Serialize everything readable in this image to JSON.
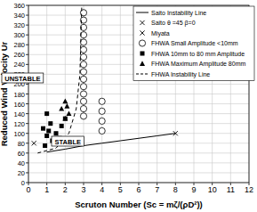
{
  "chart_data": {
    "type": "scatter",
    "x_label": "Scruton  Number (Sc = mζ/(ρD²))",
    "y_label": "Reduced Wind Velocity  Ur",
    "xlim": [
      0,
      12
    ],
    "xticks": [
      0,
      1,
      2,
      3,
      4,
      5,
      6,
      7,
      8,
      9,
      10,
      11,
      12
    ],
    "ylim": [
      0,
      360
    ],
    "yticks": [
      0,
      20,
      40,
      60,
      80,
      100,
      120,
      140,
      160,
      180,
      200,
      220,
      240,
      260,
      280,
      300,
      320,
      340,
      360
    ],
    "grid": true,
    "legend": "upper right",
    "annotations": [
      "UNSTABLE",
      "STABLE"
    ],
    "series": [
      {
        "name": "Saito Instability Line",
        "type": "line",
        "line_style": "solid",
        "color": "#000000",
        "x": [
          1,
          2,
          3,
          4,
          5,
          6,
          7,
          8
        ],
        "values": [
          62,
          68,
          75,
          80,
          85,
          90,
          95,
          100
        ]
      },
      {
        "name": "Saito  θ =45  β=0",
        "type": "scatter",
        "marker": "x",
        "color": "#000000",
        "x": [
          8
        ],
        "values": [
          100
        ]
      },
      {
        "name": "Miyata",
        "type": "scatter",
        "marker": "x",
        "color": "#000000",
        "x": [
          0.3
        ],
        "values": [
          80
        ]
      },
      {
        "name": "FHWA Small Amplitude <10mm",
        "type": "scatter",
        "marker": "circle",
        "color": "#000000",
        "x": [
          3,
          3,
          3,
          3,
          3,
          3,
          3,
          3,
          3,
          3,
          3,
          3,
          3,
          3,
          3,
          4,
          4,
          4,
          4
        ],
        "values": [
          135,
          150,
          165,
          180,
          195,
          210,
          225,
          240,
          255,
          270,
          285,
          300,
          315,
          330,
          345,
          105,
          125,
          145,
          165
        ]
      },
      {
        "name": "FHWA 10mm to 80 mm Amplitude",
        "type": "scatter",
        "marker": "square",
        "color": "#000000",
        "x": [
          1,
          1.2,
          0.8,
          1.5,
          1,
          1.3,
          1.7,
          0.9,
          1.8,
          2,
          1.1
        ],
        "values": [
          140,
          120,
          110,
          100,
          95,
          85,
          90,
          75,
          115,
          130,
          105
        ]
      },
      {
        "name": "FHWA Maximum Amplitude 80mm",
        "type": "scatter",
        "marker": "triangle",
        "color": "#000000",
        "x": [
          2,
          1.8,
          2.2,
          2,
          2.1
        ],
        "values": [
          165,
          150,
          140,
          130,
          155
        ]
      },
      {
        "name": "FHWA Instability Line",
        "type": "line",
        "line_style": "dashed",
        "color": "#000000",
        "x": [
          0.5,
          1.5,
          2.2,
          2.6,
          2.8,
          2.9
        ],
        "values": [
          60,
          70,
          100,
          150,
          220,
          360
        ]
      }
    ]
  }
}
